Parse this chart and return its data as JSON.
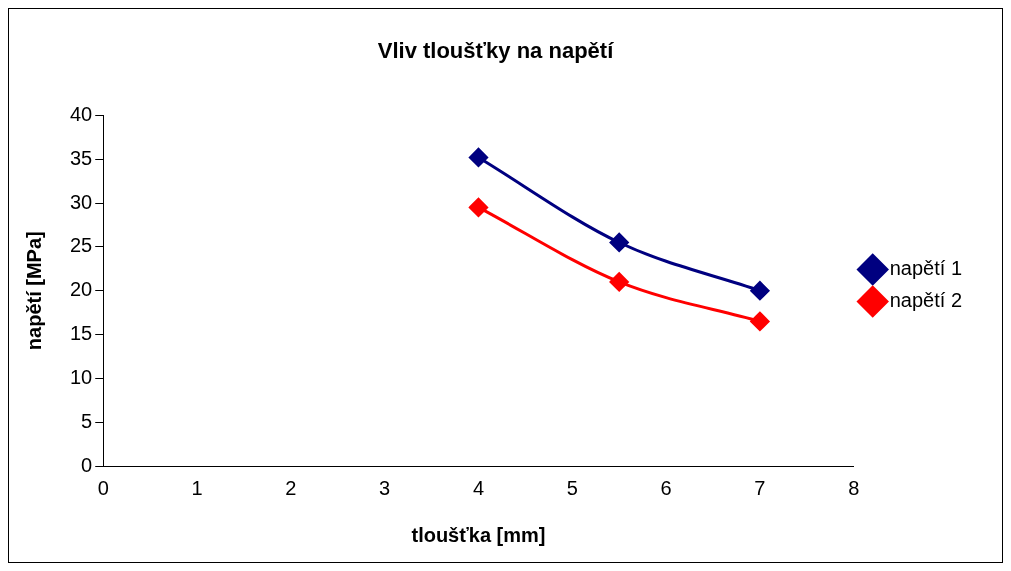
{
  "chart_data": {
    "type": "line",
    "title": "Vliv tloušťky na napětí",
    "xlabel": "tloušťka [mm]",
    "ylabel": "napětí [MPa]",
    "x": [
      4,
      5.5,
      7
    ],
    "series": [
      {
        "name": "napětí 1",
        "color": "#000080",
        "values": [
          35.2,
          25.5,
          20
        ]
      },
      {
        "name": "napětí 2",
        "color": "#ff0000",
        "values": [
          29.5,
          21,
          16.5
        ]
      }
    ],
    "xlim": [
      0,
      8
    ],
    "xticks": [
      0,
      1,
      2,
      3,
      4,
      5,
      6,
      7,
      8
    ],
    "ylim": [
      0,
      40
    ],
    "yticks": [
      0,
      5,
      10,
      15,
      20,
      25,
      30,
      35,
      40
    ],
    "grid": false,
    "legend": "right",
    "marker": "diamond",
    "line_style": "solid"
  }
}
